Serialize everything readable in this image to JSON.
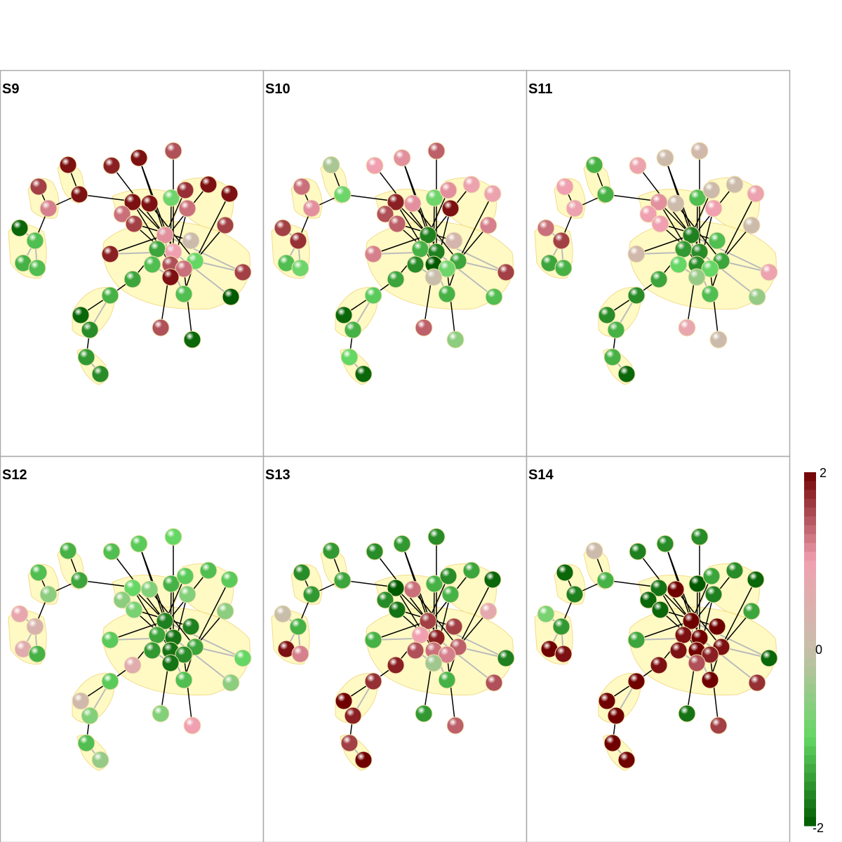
{
  "panels": [
    {
      "title": "S9"
    },
    {
      "title": "S10"
    },
    {
      "title": "S11"
    },
    {
      "title": "S12"
    },
    {
      "title": "S13"
    },
    {
      "title": "S14"
    }
  ],
  "colorbar": {
    "max_label": "2",
    "mid_label": "0",
    "min_label": "-2",
    "colors": [
      "#006400",
      "#66dd66",
      "#c8b8a8",
      "#f0a0b0",
      "#700000"
    ]
  },
  "colors": {
    "panel_border": "#aaaaaa",
    "group_fill": "#fff8b0",
    "edge_strong": "#000000",
    "edge_weak": "#bbbbbb"
  }
}
